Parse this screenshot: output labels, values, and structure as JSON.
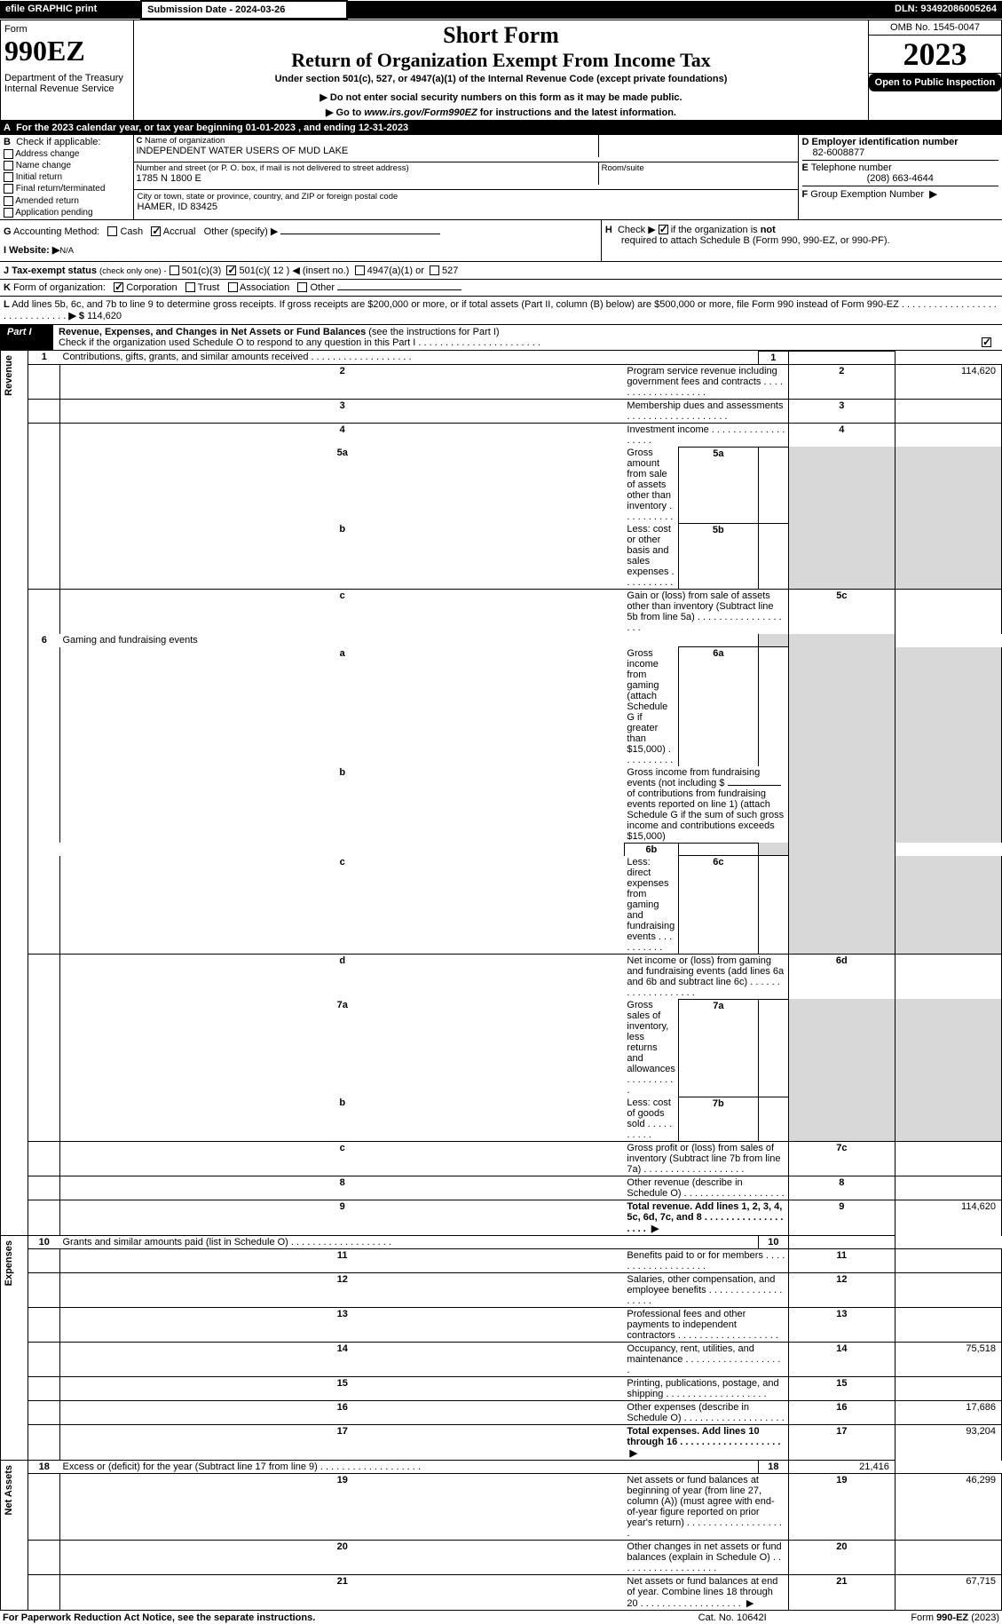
{
  "topbar": {
    "efile": "efile GRAPHIC print",
    "subdate_label": "Submission Date - 2024-03-26",
    "dln": "DLN: 93492086005264"
  },
  "header": {
    "form_word": "Form",
    "form_num": "990EZ",
    "dept": "Department of the Treasury\nInternal Revenue Service",
    "short_form": "Short Form",
    "title": "Return of Organization Exempt From Income Tax",
    "subtitle": "Under section 501(c), 527, or 4947(a)(1) of the Internal Revenue Code (except private foundations)",
    "note1": "▶ Do not enter social security numbers on this form as it may be made public.",
    "note2": "▶ Go to www.irs.gov/Form990EZ for instructions and the latest information.",
    "omb": "OMB No. 1545-0047",
    "year": "2023",
    "open": "Open to Public Inspection"
  },
  "A": {
    "text": "For the 2023 calendar year, or tax year beginning 01-01-2023 , and ending 12-31-2023"
  },
  "B": {
    "label": "Check if applicable:",
    "items": [
      "Address change",
      "Name change",
      "Initial return",
      "Final return/terminated",
      "Amended return",
      "Application pending"
    ]
  },
  "C": {
    "name_label": "Name of organization",
    "name": "INDEPENDENT WATER USERS OF MUD LAKE",
    "street_label": "Number and street (or P. O. box, if mail is not delivered to street address)",
    "street": "1785 N 1800 E",
    "room_label": "Room/suite",
    "city_label": "City or town, state or province, country, and ZIP or foreign postal code",
    "city": "HAMER, ID  83425"
  },
  "D": {
    "label": "Employer identification number",
    "val": "82-6008877"
  },
  "E": {
    "label": "Telephone number",
    "val": "(208) 663-4644"
  },
  "F": {
    "label": "Group Exemption Number",
    "arrow": "▶"
  },
  "G": {
    "label": "Accounting Method:",
    "cash": "Cash",
    "accrual": "Accrual",
    "other": "Other (specify) ▶"
  },
  "H": {
    "text": "Check ▶",
    "text2": "if the organization is",
    "not": "not",
    "text3": "required to attach Schedule B (Form 990, 990-EZ, or 990-PF)."
  },
  "I": {
    "label": "Website: ▶",
    "val": "N/A"
  },
  "J": {
    "label": "Tax-exempt status",
    "small": "(check only one) -",
    "o1": "501(c)(3)",
    "o2": "501(c)( 12 ) ◀ (insert no.)",
    "o3": "4947(a)(1) or",
    "o4": "527"
  },
  "K": {
    "label": "Form of organization:",
    "o1": "Corporation",
    "o2": "Trust",
    "o3": "Association",
    "o4": "Other"
  },
  "L": {
    "text": "Add lines 5b, 6c, and 7b to line 9 to determine gross receipts. If gross receipts are $200,000 or more, or if total assets (Part II, column (B) below) are $500,000 or more, file Form 990 instead of Form 990-EZ",
    "arrow": "▶ $",
    "val": "114,620"
  },
  "part1": {
    "label": "Part I",
    "title": "Revenue, Expenses, and Changes in Net Assets or Fund Balances",
    "instr": "(see the instructions for Part I)",
    "check": "Check if the organization used Schedule O to respond to any question in this Part I"
  },
  "sections": {
    "revenue": "Revenue",
    "expenses": "Expenses",
    "netassets": "Net Assets"
  },
  "lines": {
    "1": {
      "n": "1",
      "t": "Contributions, gifts, grants, and similar amounts received",
      "box": "1",
      "v": ""
    },
    "2": {
      "n": "2",
      "t": "Program service revenue including government fees and contracts",
      "box": "2",
      "v": "114,620"
    },
    "3": {
      "n": "3",
      "t": "Membership dues and assessments",
      "box": "3",
      "v": ""
    },
    "4": {
      "n": "4",
      "t": "Investment income",
      "box": "4",
      "v": ""
    },
    "5a": {
      "n": "5a",
      "t": "Gross amount from sale of assets other than inventory",
      "sb": "5a"
    },
    "5b": {
      "n": "b",
      "t": "Less: cost or other basis and sales expenses",
      "sb": "5b"
    },
    "5c": {
      "n": "c",
      "t": "Gain or (loss) from sale of assets other than inventory (Subtract line 5b from line 5a)",
      "box": "5c",
      "v": ""
    },
    "6": {
      "n": "6",
      "t": "Gaming and fundraising events"
    },
    "6a": {
      "n": "a",
      "t": "Gross income from gaming (attach Schedule G if greater than $15,000)",
      "sb": "6a"
    },
    "6b": {
      "n": "b",
      "t": "Gross income from fundraising events (not including $",
      "t2": "of contributions from fundraising events reported on line 1) (attach Schedule G if the sum of such gross income and contributions exceeds $15,000)",
      "sb": "6b"
    },
    "6c": {
      "n": "c",
      "t": "Less: direct expenses from gaming and fundraising events",
      "sb": "6c"
    },
    "6d": {
      "n": "d",
      "t": "Net income or (loss) from gaming and fundraising events (add lines 6a and 6b and subtract line 6c)",
      "box": "6d",
      "v": ""
    },
    "7a": {
      "n": "7a",
      "t": "Gross sales of inventory, less returns and allowances",
      "sb": "7a"
    },
    "7b": {
      "n": "b",
      "t": "Less: cost of goods sold",
      "sb": "7b"
    },
    "7c": {
      "n": "c",
      "t": "Gross profit or (loss) from sales of inventory (Subtract line 7b from line 7a)",
      "box": "7c",
      "v": ""
    },
    "8": {
      "n": "8",
      "t": "Other revenue (describe in Schedule O)",
      "box": "8",
      "v": ""
    },
    "9": {
      "n": "9",
      "t": "Total revenue. Add lines 1, 2, 3, 4, 5c, 6d, 7c, and 8",
      "box": "9",
      "v": "114,620",
      "bold": true,
      "arrow": true
    },
    "10": {
      "n": "10",
      "t": "Grants and similar amounts paid (list in Schedule O)",
      "box": "10",
      "v": ""
    },
    "11": {
      "n": "11",
      "t": "Benefits paid to or for members",
      "box": "11",
      "v": ""
    },
    "12": {
      "n": "12",
      "t": "Salaries, other compensation, and employee benefits",
      "box": "12",
      "v": ""
    },
    "13": {
      "n": "13",
      "t": "Professional fees and other payments to independent contractors",
      "box": "13",
      "v": ""
    },
    "14": {
      "n": "14",
      "t": "Occupancy, rent, utilities, and maintenance",
      "box": "14",
      "v": "75,518"
    },
    "15": {
      "n": "15",
      "t": "Printing, publications, postage, and shipping",
      "box": "15",
      "v": ""
    },
    "16": {
      "n": "16",
      "t": "Other expenses (describe in Schedule O)",
      "box": "16",
      "v": "17,686"
    },
    "17": {
      "n": "17",
      "t": "Total expenses. Add lines 10 through 16",
      "box": "17",
      "v": "93,204",
      "bold": true,
      "arrow": true
    },
    "18": {
      "n": "18",
      "t": "Excess or (deficit) for the year (Subtract line 17 from line 9)",
      "box": "18",
      "v": "21,416"
    },
    "19": {
      "n": "19",
      "t": "Net assets or fund balances at beginning of year (from line 27, column (A)) (must agree with end-of-year figure reported on prior year's return)",
      "box": "19",
      "v": "46,299"
    },
    "20": {
      "n": "20",
      "t": "Other changes in net assets or fund balances (explain in Schedule O)",
      "box": "20",
      "v": ""
    },
    "21": {
      "n": "21",
      "t": "Net assets or fund balances at end of year. Combine lines 18 through 20",
      "box": "21",
      "v": "67,715",
      "arrow": true
    }
  },
  "footer": {
    "left": "For Paperwork Reduction Act Notice, see the separate instructions.",
    "mid": "Cat. No. 10642I",
    "right_a": "Form ",
    "right_b": "990-EZ",
    "right_c": " (2023)"
  }
}
